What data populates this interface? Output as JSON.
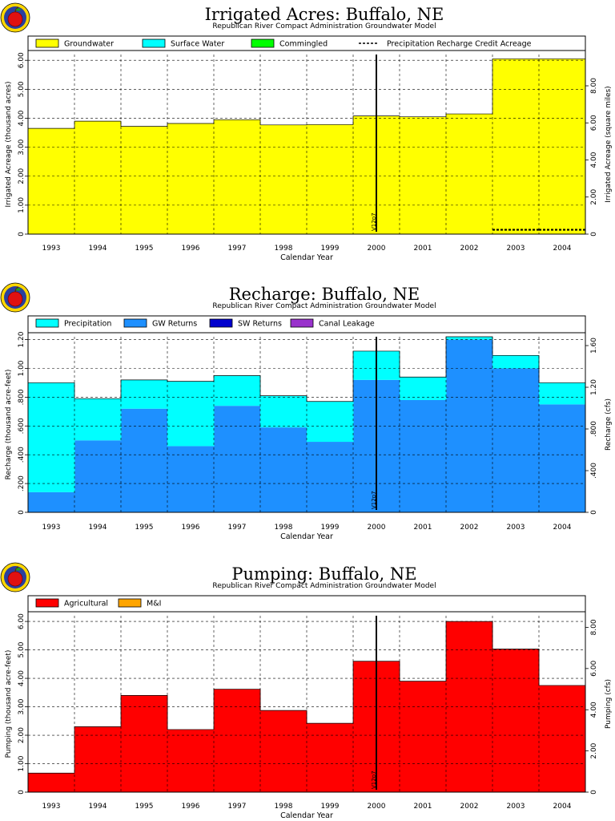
{
  "logo": {
    "name": "apple-logo"
  },
  "chart_data": [
    {
      "type": "area",
      "title": "Irrigated Acres: Buffalo, NE",
      "subtitle": "Republican River Compact Administration Groundwater Model",
      "xlabel": "Calendar Year",
      "ylabel": "Irrigated Acreage (thousand acres)",
      "ylabel_right": "Irrigated Acreage (square miles)",
      "categories": [
        "1993",
        "1994",
        "1995",
        "1996",
        "1997",
        "1998",
        "1999",
        "2000",
        "2001",
        "2002",
        "2003",
        "2004"
      ],
      "ylim": [
        0,
        6.2
      ],
      "yticks": [
        "0",
        "1.00",
        "2.00",
        "3.00",
        "4.00",
        "5.00",
        "6.00"
      ],
      "yticks_right": [
        "0",
        "2.00",
        "4.00",
        "6.00",
        "8.00"
      ],
      "right_scale": 1.5625,
      "legend": [
        {
          "label": "Groundwater",
          "color": "#ffff00",
          "style": "box"
        },
        {
          "label": "Surface Water",
          "color": "#00ffff",
          "style": "box"
        },
        {
          "label": "Commingled",
          "color": "#00ff00",
          "style": "box"
        },
        {
          "label": "Precipitation Recharge Credit Acreage",
          "color": "#000000",
          "style": "dash"
        }
      ],
      "series": [
        {
          "name": "Groundwater",
          "color": "#ffff00",
          "values": [
            3.65,
            3.9,
            3.72,
            3.82,
            3.95,
            3.77,
            3.78,
            4.08,
            4.05,
            4.15,
            6.05,
            6.05
          ]
        },
        {
          "name": "Surface Water",
          "color": "#00ffff",
          "values": [
            0,
            0,
            0,
            0,
            0,
            0,
            0,
            0,
            0,
            0,
            0,
            0
          ]
        },
        {
          "name": "Commingled",
          "color": "#00ff00",
          "values": [
            0,
            0,
            0,
            0,
            0,
            0,
            0,
            0,
            0,
            0,
            0,
            0
          ]
        }
      ],
      "line_series": {
        "name": "Precipitation Recharge Credit Acreage",
        "values": [
          null,
          null,
          null,
          null,
          null,
          null,
          null,
          null,
          null,
          null,
          0.15,
          0.15
        ]
      },
      "marker_label": "V12p7",
      "marker_after_index": 7
    },
    {
      "type": "area",
      "title": "Recharge: Buffalo, NE",
      "subtitle": "Republican River Compact Administration Groundwater Model",
      "xlabel": "Calendar Year",
      "ylabel": "Recharge (thousand acre-feet)",
      "ylabel_right": "Recharge (cfs)",
      "categories": [
        "1993",
        "1994",
        "1995",
        "1996",
        "1997",
        "1998",
        "1999",
        "2000",
        "2001",
        "2002",
        "2003",
        "2004"
      ],
      "ylim": [
        0,
        1.22
      ],
      "yticks": [
        "0",
        ".200",
        ".400",
        ".600",
        ".800",
        "1.00",
        "1.20"
      ],
      "yticks_right": [
        "0",
        ".400",
        ".800",
        "1.20",
        "1.60"
      ],
      "right_scale": 1.381,
      "legend": [
        {
          "label": "Precipitation",
          "color": "#00ffff",
          "style": "box"
        },
        {
          "label": "GW Returns",
          "color": "#1e90ff",
          "style": "box"
        },
        {
          "label": "SW Returns",
          "color": "#0000cd",
          "style": "box"
        },
        {
          "label": "Canal Leakage",
          "color": "#9932cc",
          "style": "box"
        }
      ],
      "series": [
        {
          "name": "GW Returns",
          "color": "#1e90ff",
          "values": [
            0.14,
            0.5,
            0.72,
            0.46,
            0.74,
            0.59,
            0.49,
            0.92,
            0.78,
            1.2,
            1.0,
            0.75
          ]
        },
        {
          "name": "Precipitation",
          "color": "#00ffff",
          "values": [
            0.76,
            0.29,
            0.2,
            0.45,
            0.21,
            0.22,
            0.28,
            0.2,
            0.16,
            0.02,
            0.09,
            0.15
          ]
        },
        {
          "name": "SW Returns",
          "color": "#0000cd",
          "values": [
            0,
            0,
            0,
            0,
            0,
            0,
            0,
            0,
            0,
            0,
            0,
            0
          ]
        },
        {
          "name": "Canal Leakage",
          "color": "#9932cc",
          "values": [
            0,
            0,
            0,
            0,
            0,
            0,
            0,
            0,
            0,
            0,
            0,
            0
          ]
        }
      ],
      "marker_label": "V12p7",
      "marker_after_index": 7
    },
    {
      "type": "area",
      "title": "Pumping: Buffalo, NE",
      "subtitle": "Republican River Compact Administration Groundwater Model",
      "xlabel": "Calendar Year",
      "ylabel": "Pumping (thousand acre-feet)",
      "ylabel_right": "Pumping (cfs)",
      "categories": [
        "1993",
        "1994",
        "1995",
        "1996",
        "1997",
        "1998",
        "1999",
        "2000",
        "2001",
        "2002",
        "2003",
        "2004"
      ],
      "ylim": [
        0,
        6.2
      ],
      "yticks": [
        "0",
        "1.00",
        "2.00",
        "3.00",
        "4.00",
        "5.00",
        "6.00"
      ],
      "yticks_right": [
        "0",
        "2.00",
        "4.00",
        "6.00",
        "8.00"
      ],
      "right_scale": 1.381,
      "legend": [
        {
          "label": "Agricultural",
          "color": "#ff0000",
          "style": "box"
        },
        {
          "label": "M&I",
          "color": "#ffa500",
          "style": "box"
        }
      ],
      "series": [
        {
          "name": "Agricultural",
          "color": "#ff0000",
          "values": [
            0.67,
            2.3,
            3.4,
            2.2,
            3.62,
            2.87,
            2.42,
            4.6,
            3.9,
            6.0,
            5.03,
            3.75
          ]
        },
        {
          "name": "M&I",
          "color": "#ffa500",
          "values": [
            0,
            0,
            0,
            0,
            0,
            0,
            0,
            0,
            0,
            0,
            0,
            0
          ]
        }
      ],
      "marker_label": "V12p7",
      "marker_after_index": 7
    }
  ]
}
